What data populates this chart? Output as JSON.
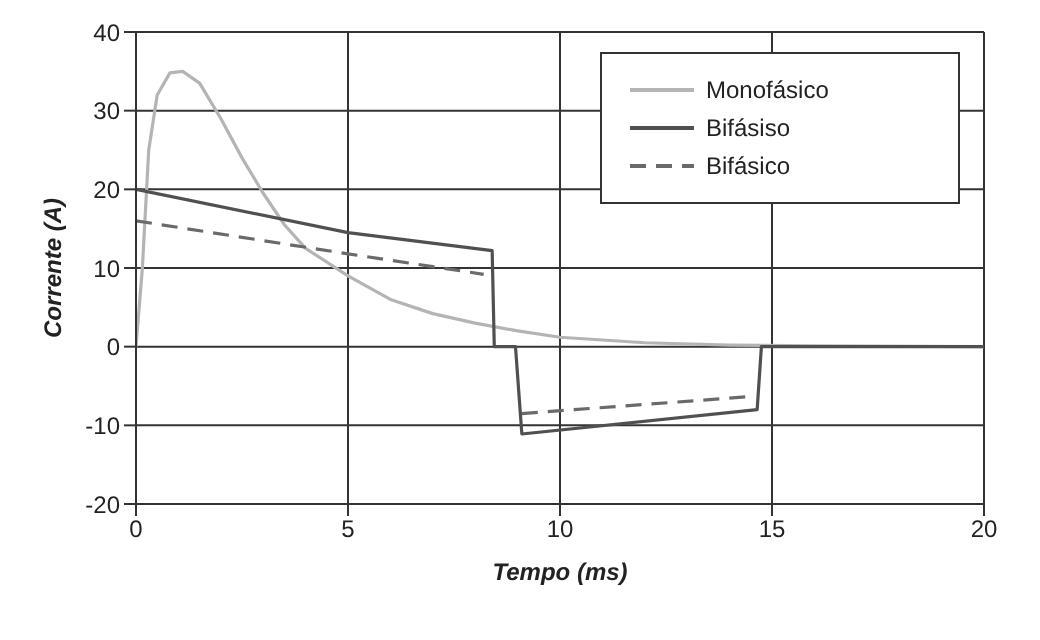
{
  "chart_data": {
    "type": "line",
    "xlabel": "Tempo (ms)",
    "ylabel": "Corrente (A)",
    "xlim": [
      0,
      20
    ],
    "xticks": [
      0,
      5,
      10,
      15,
      20
    ],
    "ylim": [
      -20,
      40
    ],
    "yticks": [
      -20,
      -10,
      0,
      10,
      20,
      30,
      40
    ],
    "grid": true,
    "legend": "top right",
    "marker": "none",
    "series": [
      {
        "name": "Monofásico",
        "color": "#b4b4b4",
        "line_style": "solid",
        "x": [
          0,
          0.15,
          0.3,
          0.5,
          0.8,
          1.1,
          1.5,
          2,
          2.5,
          3,
          3.5,
          4,
          5,
          6,
          7,
          8,
          9,
          10,
          12,
          14,
          16,
          20
        ],
        "values": [
          0,
          10,
          25,
          32,
          34.8,
          35,
          33.5,
          29,
          24,
          19.5,
          15.5,
          12.5,
          9,
          6,
          4.2,
          3,
          2,
          1.2,
          0.5,
          0.2,
          0.1,
          0
        ]
      },
      {
        "name": "Bifásiso",
        "color": "#505050",
        "line_style": "solid",
        "x": [
          0,
          5,
          8.4,
          8.45,
          8.95,
          9.1,
          14.65,
          14.75,
          20
        ],
        "values": [
          20,
          14.5,
          12.2,
          0,
          0,
          -11.1,
          -8,
          0,
          0
        ]
      },
      {
        "name": "Bifásico",
        "color": "#6a6a6a",
        "line_style": "dashed",
        "x": [
          0,
          5,
          8.2,
          8.6,
          9.1,
          14.6
        ],
        "values": [
          16,
          11.8,
          9.2,
          null,
          -8.5,
          -6.3
        ]
      }
    ]
  }
}
